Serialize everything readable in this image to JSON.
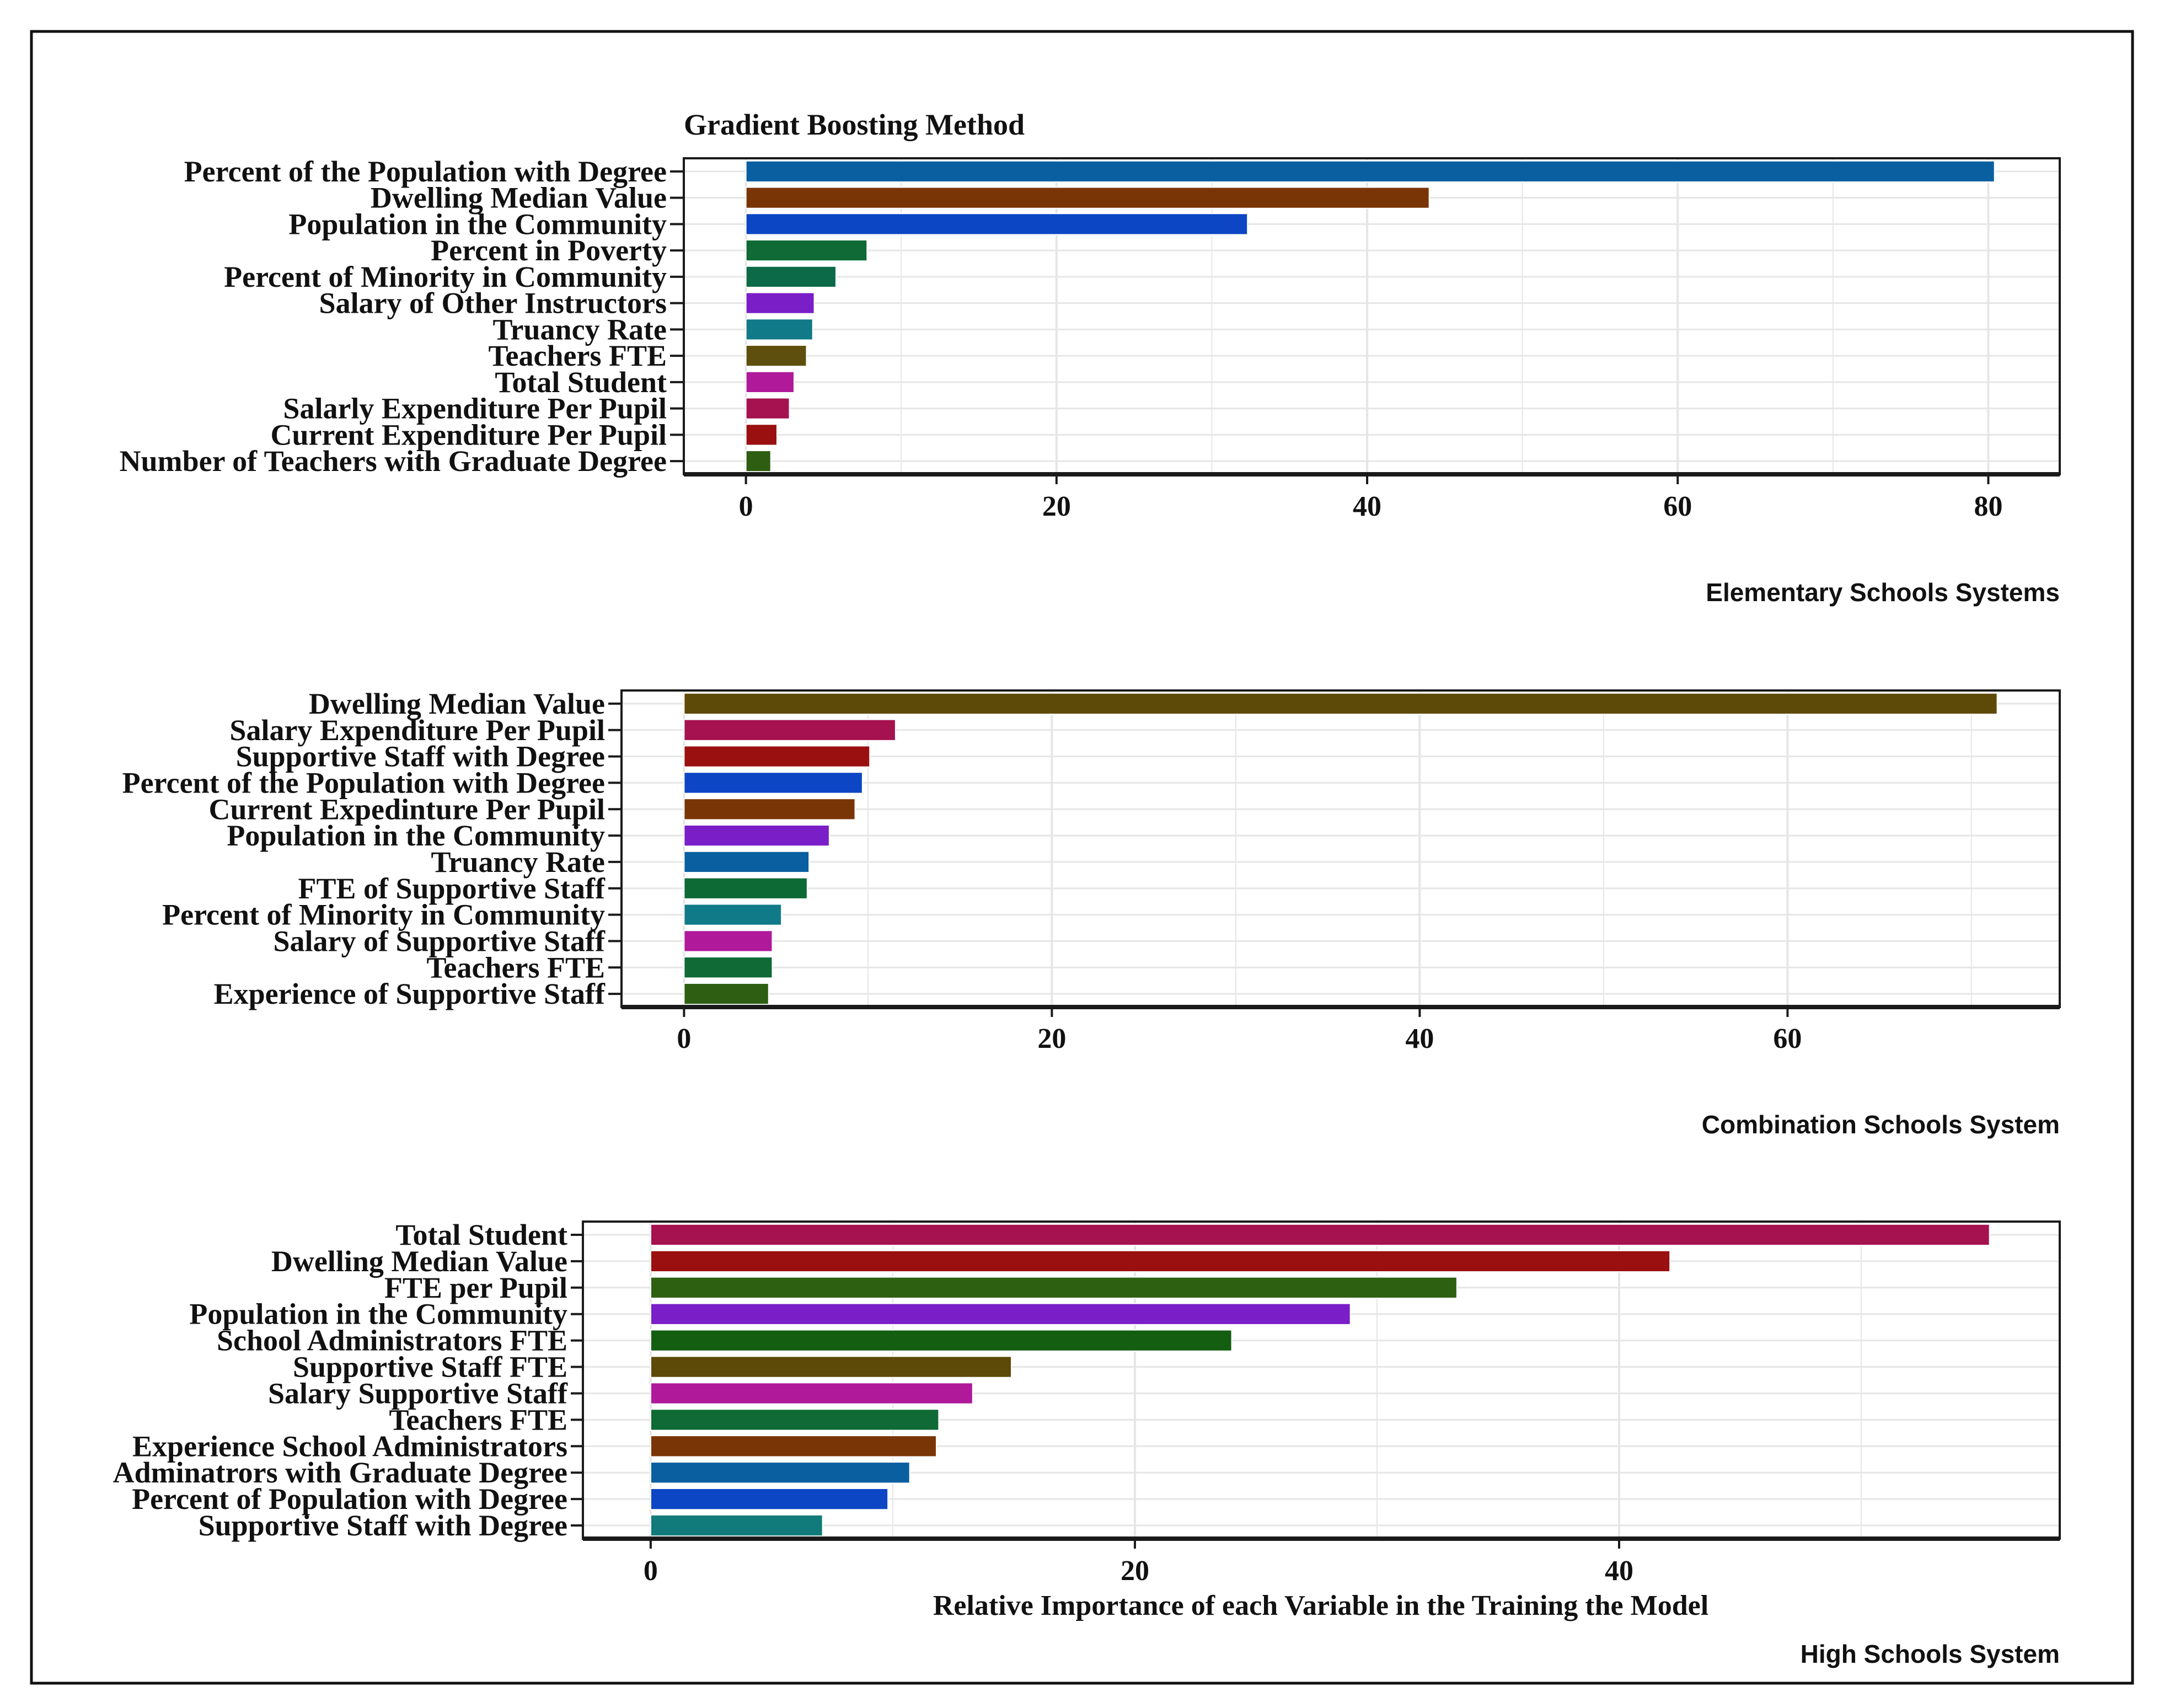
{
  "figure": {
    "title": "Gradient Boosting Method",
    "xlabel": "Relative Importance of each Variable in the Training the Model"
  },
  "colors": {
    "frame": "#1a1a1a",
    "grid": "#e6e6e6",
    "bar_outline": "#ffffff",
    "text": "#111111"
  },
  "chart_data": [
    {
      "type": "bar",
      "orientation": "horizontal",
      "caption": "Elementary Schools Systems",
      "xlim": [
        -4,
        84.6
      ],
      "xticks": [
        0,
        20,
        40,
        60,
        80
      ],
      "grid": true,
      "categories": [
        "Percent of the Population with Degree",
        "Dwelling Median Value",
        "Population in the Community",
        "Percent in Poverty",
        "Percent of Minority in Community",
        "Salary of Other Instructors",
        "Truancy Rate",
        "Teachers FTE",
        "Total Student",
        "Salarly Expenditure Per Pupil",
        "Current Expenditure Per Pupil",
        "Number of Teachers with Graduate Degree"
      ],
      "values": [
        80.4,
        44.0,
        32.3,
        7.8,
        5.8,
        4.4,
        4.3,
        3.9,
        3.1,
        2.8,
        2.0,
        1.6
      ],
      "colors": [
        "#0a5fa0",
        "#7a3506",
        "#0c46c4",
        "#0f6a35",
        "#0d6a48",
        "#7a1ec8",
        "#117a88",
        "#5e4f0e",
        "#b0199a",
        "#a5124f",
        "#9a1010",
        "#2e5e12"
      ]
    },
    {
      "type": "bar",
      "orientation": "horizontal",
      "caption": "Combination Schools System",
      "xlim": [
        -3.4,
        74.8
      ],
      "xticks": [
        0,
        20,
        40,
        60
      ],
      "grid": true,
      "categories": [
        "Dwelling Median Value",
        "Salary Expenditure Per Pupil",
        "Supportive Staff with Degree",
        "Percent of the Population with Degree",
        "Current Expedinture Per Pupil",
        "Population in the Community",
        "Truancy Rate",
        "FTE of Supportive Staff",
        "Percent of Minority in Community",
        "Salary of Supportive Staff",
        "Teachers FTE",
        "Experience of Supportive Staff"
      ],
      "values": [
        71.4,
        11.5,
        10.1,
        9.7,
        9.3,
        7.9,
        6.8,
        6.7,
        5.3,
        4.8,
        4.8,
        4.6
      ],
      "colors": [
        "#5e4a08",
        "#a5124f",
        "#9a1010",
        "#0c46c4",
        "#7a3506",
        "#7a1ec8",
        "#0a5fa0",
        "#0d6a35",
        "#117a88",
        "#b0199a",
        "#0f6a35",
        "#2e5e12"
      ]
    },
    {
      "type": "bar",
      "orientation": "horizontal",
      "caption": "High Schools System",
      "xlim": [
        -2.8,
        58.2
      ],
      "xticks": [
        0,
        20,
        40
      ],
      "grid": true,
      "categories": [
        "Total Student",
        "Dwelling Median Value",
        "FTE per Pupil",
        "Population in the Community",
        "School Administrators FTE",
        "Supportive Staff FTE",
        "Salary Supportive Staff",
        "Teachers FTE",
        "Experience School Administrators",
        "Adminatrors with Graduate Degree",
        "Percent of Population with Degree",
        "Supportive Staff with Degree"
      ],
      "values": [
        55.3,
        42.1,
        33.3,
        28.9,
        24.0,
        14.9,
        13.3,
        11.9,
        11.8,
        10.7,
        9.8,
        7.1
      ],
      "colors": [
        "#a5124f",
        "#9a1010",
        "#2e6012",
        "#7a1ec8",
        "#145e12",
        "#5e4a08",
        "#b0199a",
        "#0f6a35",
        "#7a3506",
        "#0a5fa0",
        "#0c46c4",
        "#117a7a"
      ]
    }
  ]
}
